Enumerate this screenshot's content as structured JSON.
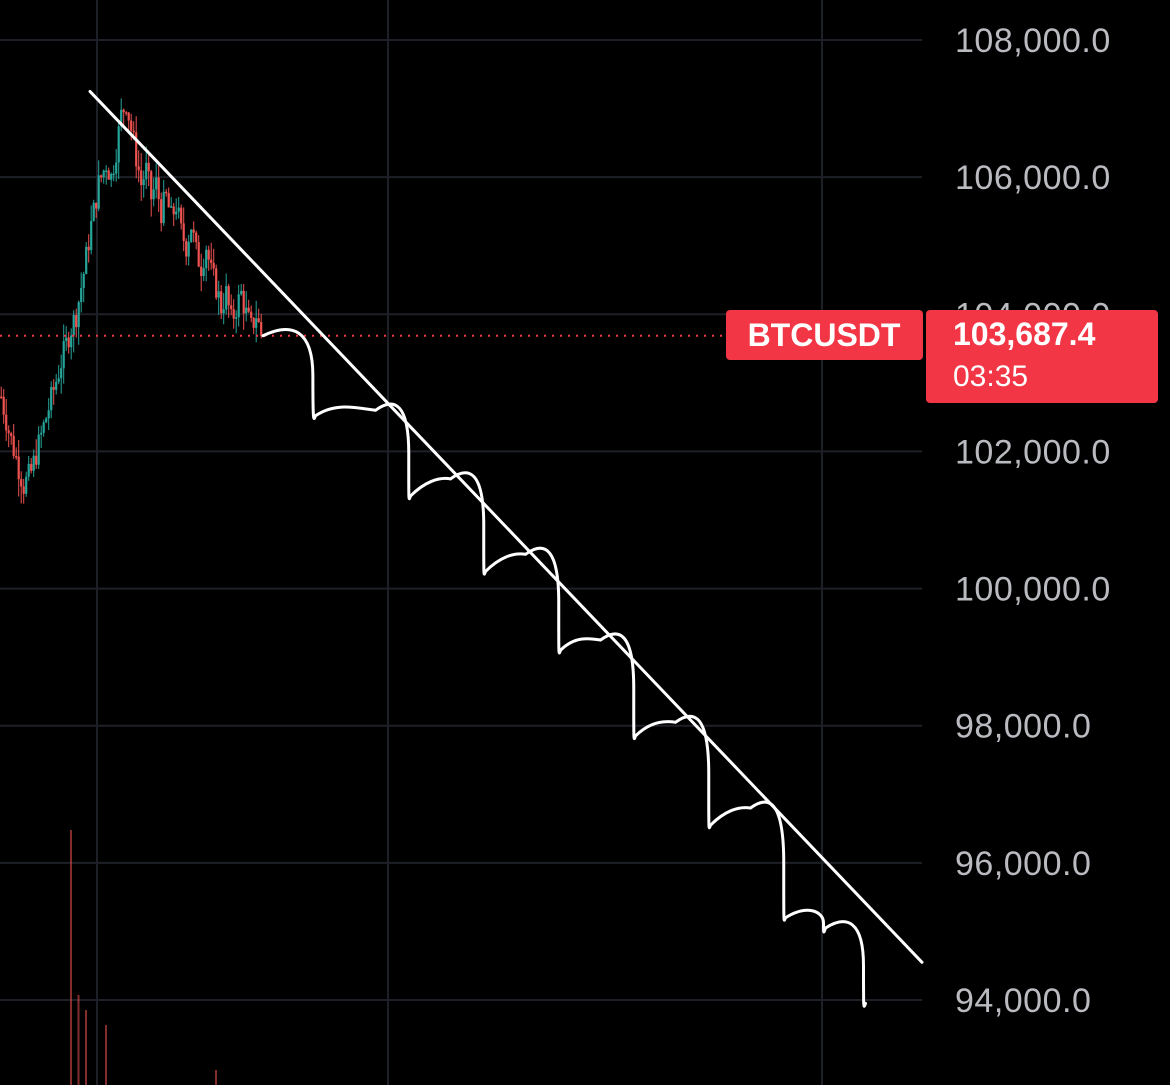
{
  "chart_data": {
    "type": "candlestick",
    "symbol": "BTCUSDT",
    "last_price": 103687.4,
    "last_price_label": "103,687.4",
    "countdown": "03:35",
    "y_axis": {
      "ylim": [
        93500,
        108600
      ],
      "ticks": [
        {
          "value": 108000,
          "label": "108,000.0"
        },
        {
          "value": 106000,
          "label": "106,000.0"
        },
        {
          "value": 104000,
          "label": "104,000.0"
        },
        {
          "value": 102000,
          "label": "102,000.0"
        },
        {
          "value": 100000,
          "label": "100,000.0"
        },
        {
          "value": 98000,
          "label": "98,000.0"
        },
        {
          "value": 96000,
          "label": "96,000.0"
        },
        {
          "value": 94000,
          "label": "94,000.0"
        }
      ]
    },
    "grid": true,
    "close_path": [
      [
        0,
        102800
      ],
      [
        3,
        102300
      ],
      [
        6,
        101900
      ],
      [
        9,
        101500
      ],
      [
        12,
        101700
      ],
      [
        15,
        102100
      ],
      [
        18,
        102500
      ],
      [
        21,
        102900
      ],
      [
        24,
        103300
      ],
      [
        27,
        103700
      ],
      [
        30,
        104000
      ],
      [
        33,
        104600
      ],
      [
        36,
        105300
      ],
      [
        39,
        105900
      ],
      [
        42,
        106200
      ],
      [
        44,
        106000
      ],
      [
        46,
        106400
      ],
      [
        48,
        106900
      ],
      [
        50,
        107100
      ],
      [
        52,
        106700
      ],
      [
        54,
        106300
      ],
      [
        56,
        105900
      ],
      [
        58,
        106100
      ],
      [
        60,
        105700
      ],
      [
        62,
        105900
      ],
      [
        64,
        105500
      ],
      [
        66,
        105700
      ],
      [
        68,
        105400
      ],
      [
        70,
        105600
      ],
      [
        72,
        105200
      ],
      [
        74,
        105000
      ],
      [
        76,
        105300
      ],
      [
        78,
        104900
      ],
      [
        80,
        104700
      ],
      [
        82,
        105000
      ],
      [
        84,
        104600
      ],
      [
        86,
        104400
      ],
      [
        88,
        104100
      ],
      [
        90,
        104300
      ],
      [
        92,
        103900
      ],
      [
        94,
        104100
      ],
      [
        96,
        104300
      ],
      [
        98,
        104000
      ],
      [
        100,
        103800
      ],
      [
        102,
        104000
      ],
      [
        104,
        103687.4
      ]
    ],
    "projection_pivots": [
      [
        104,
        103687.4
      ],
      [
        125,
        102520
      ],
      [
        149,
        102600
      ],
      [
        163,
        101350
      ],
      [
        179,
        101600
      ],
      [
        193,
        100250
      ],
      [
        209,
        100500
      ],
      [
        223,
        99100
      ],
      [
        239,
        99250
      ],
      [
        253,
        97850
      ],
      [
        269,
        98050
      ],
      [
        283,
        96550
      ],
      [
        299,
        96800
      ],
      [
        313,
        95200
      ],
      [
        329,
        95050
      ],
      [
        345,
        93950
      ]
    ],
    "trendline": {
      "start": [
        36,
        107250
      ],
      "end": [
        370,
        94550
      ]
    },
    "volume": [
      {
        "x": 24,
        "value": 0.85
      },
      {
        "x": 27,
        "value": 0.3
      },
      {
        "x": 30,
        "value": 0.25
      },
      {
        "x": 38,
        "value": 0.2
      },
      {
        "x": 82,
        "value": 0.05
      }
    ],
    "colors": {
      "up": "#26a69a",
      "down": "#ef5350",
      "price_badge": "#f23645",
      "line": "#ffffff",
      "grid": "#1e2028",
      "axis_text": "#b9bbc0"
    }
  }
}
